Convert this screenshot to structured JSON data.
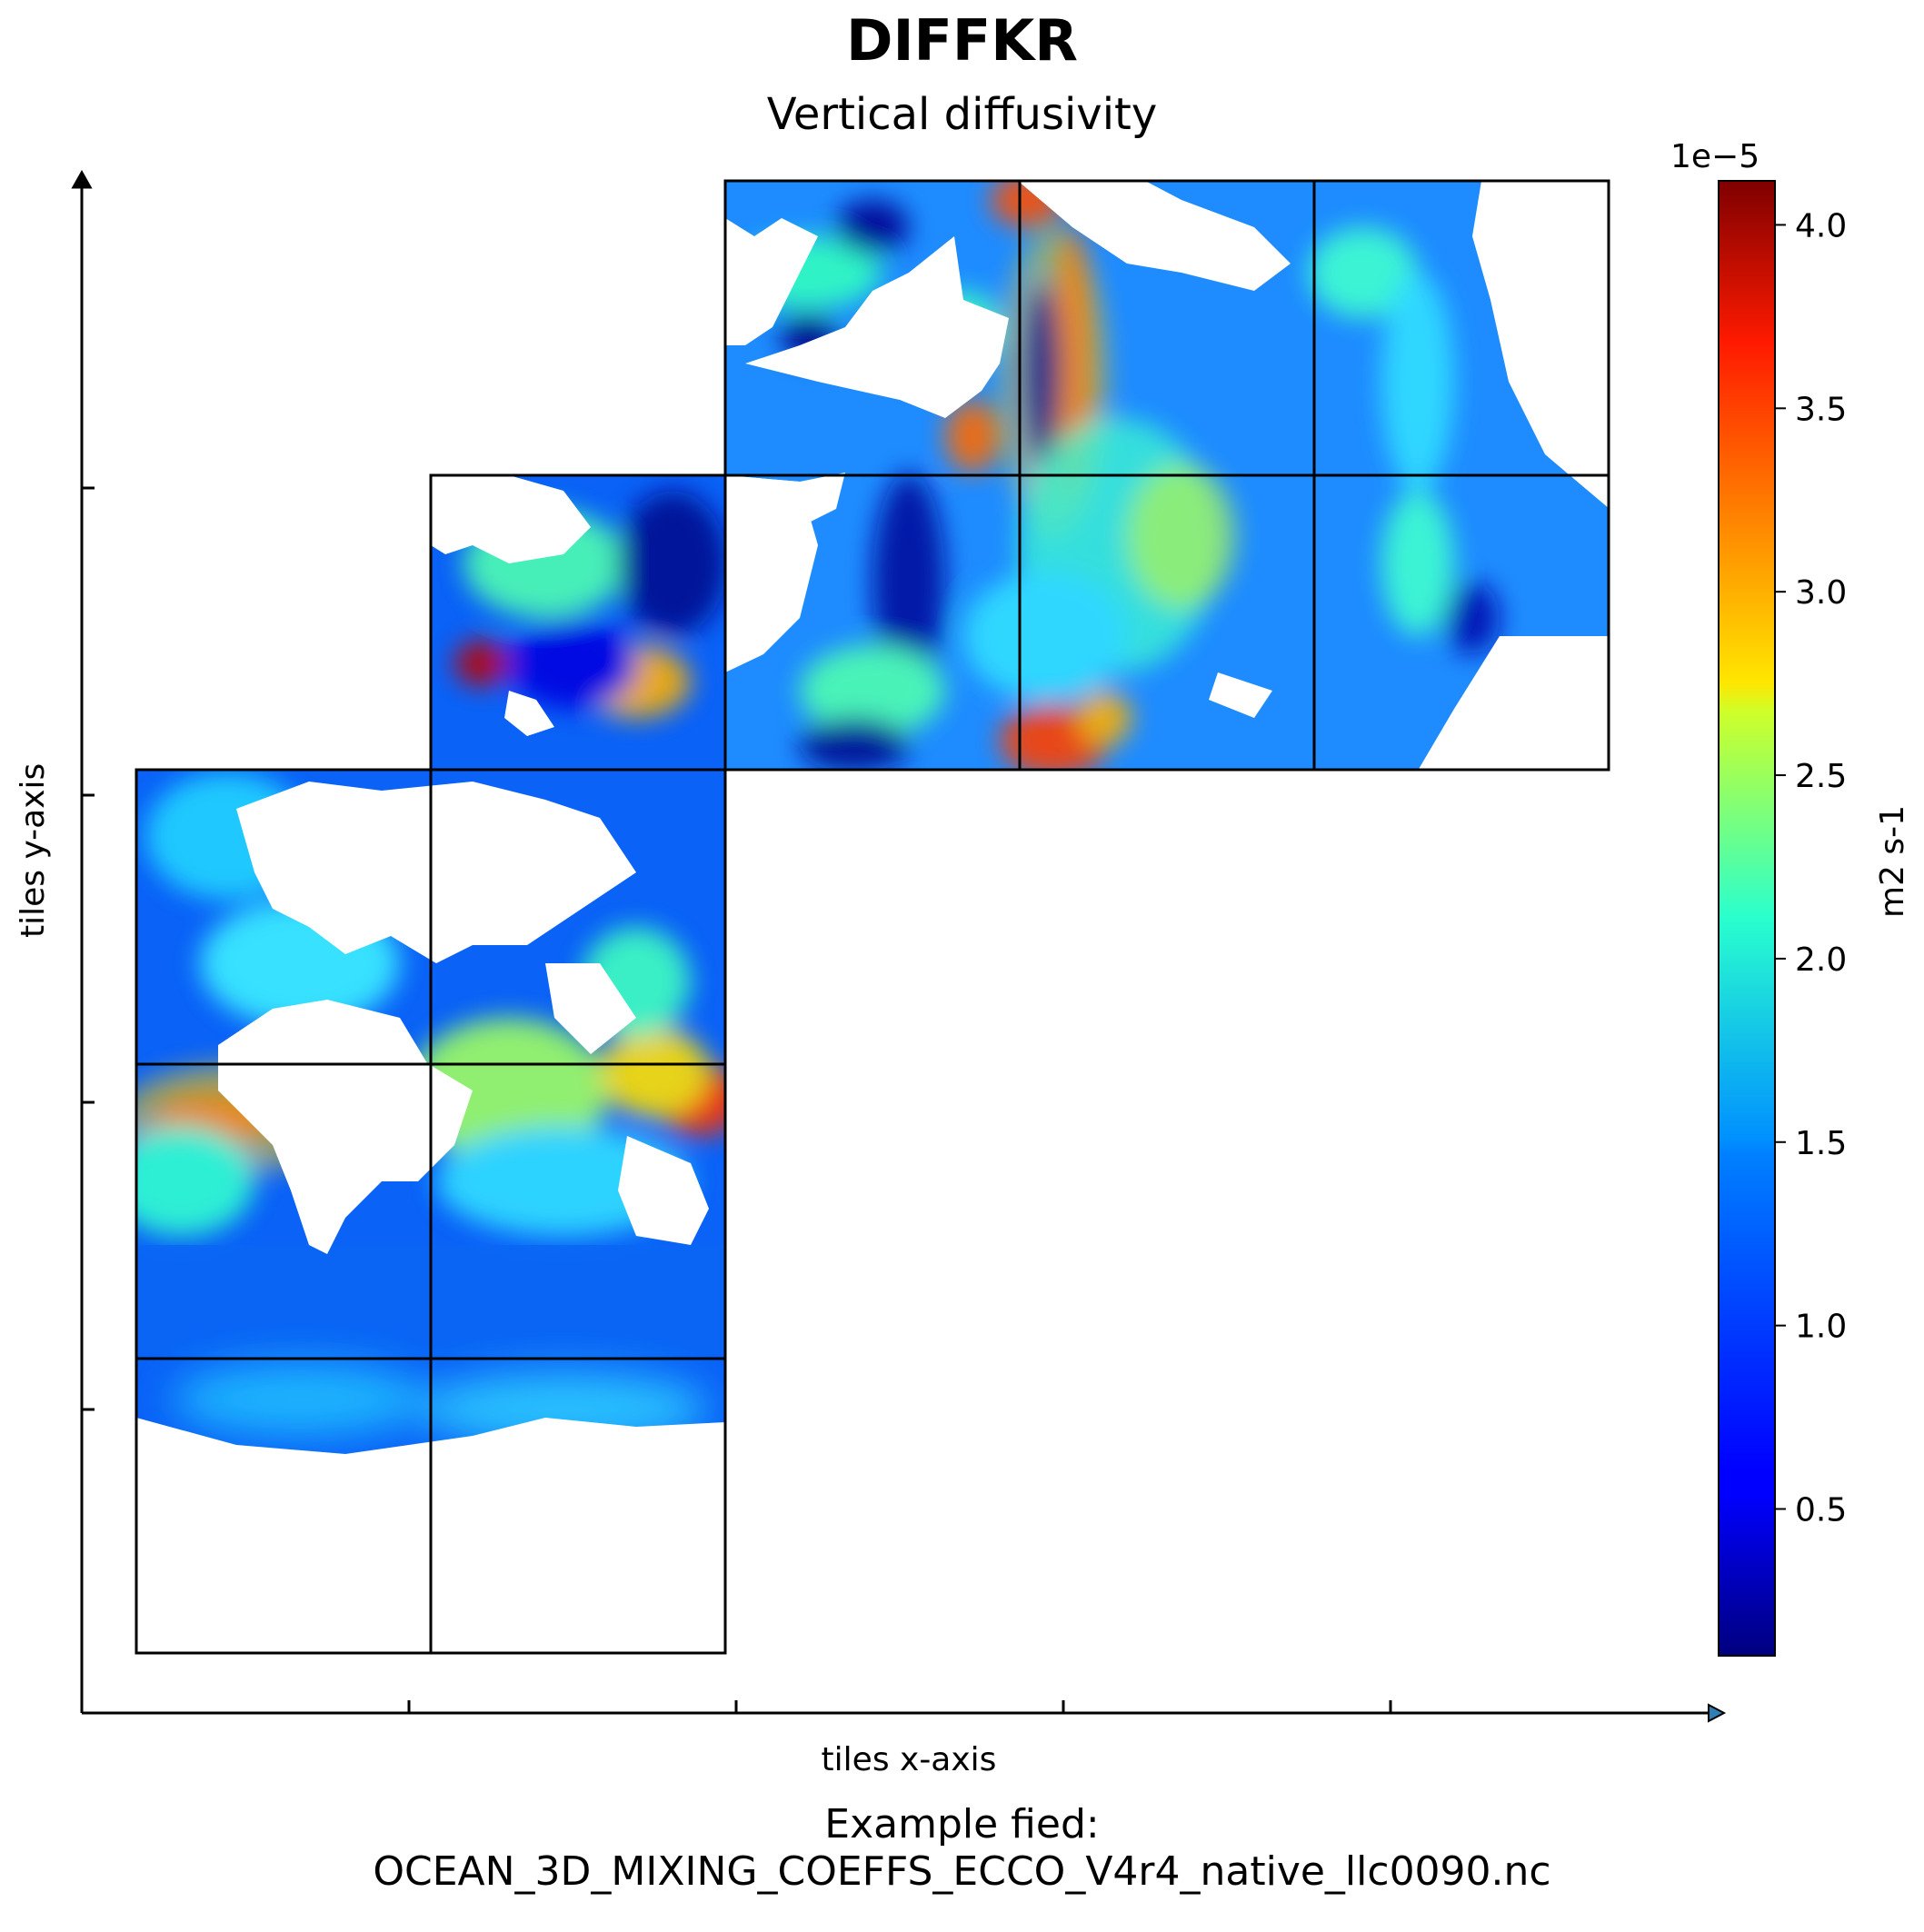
{
  "title": "DIFFKR",
  "subtitle": "Vertical diffusivity",
  "xlabel": "tiles x-axis",
  "ylabel": "tiles y-axis",
  "footer": {
    "line1": "Example fied:",
    "line2": "OCEAN_3D_MIXING_COEFFS_ECCO_V4r4_native_llc0090.nc"
  },
  "colors": {
    "land": "#ffffff",
    "grid": "#000000",
    "colormap": "jet",
    "ocean_base": "#0a62f7"
  },
  "chart_data": {
    "type": "heatmap",
    "title": "DIFFKR",
    "subtitle": "Vertical diffusivity",
    "xlabel": "tiles x-axis",
    "ylabel": "tiles y-axis",
    "layout": "llc90 native tiles, 13 tiles",
    "colorbar": {
      "label": "m2 s-1",
      "exponent": "1e−5",
      "range": [
        0.1,
        4.12
      ],
      "ticks": [
        0.5,
        1.0,
        1.5,
        2.0,
        2.5,
        3.0,
        3.5,
        4.0
      ],
      "tick_labels": [
        "0.5",
        "1.0",
        "1.5",
        "2.0",
        "2.5",
        "3.0",
        "3.5",
        "4.0"
      ],
      "colormap": "jet"
    },
    "grid": true
  }
}
